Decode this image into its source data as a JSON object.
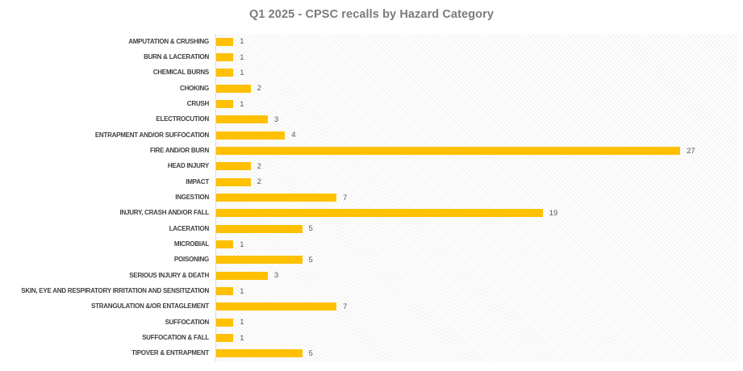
{
  "chart_data": {
    "type": "bar",
    "orientation": "horizontal",
    "title": "Q1 2025 - CPSC recalls by Hazard Category",
    "categories": [
      "AMPUTATION & CRUSHING",
      "BURN & LACERATION",
      "CHEMICAL BURNS",
      "CHOKING",
      "CRUSH",
      "ELECTROCUTION",
      "ENTRAPMENT AND/OR SUFFOCATION",
      "FIRE AND/OR BURN",
      "HEAD INJURY",
      "IMPACT",
      "INGESTION",
      "INJURY, CRASH AND/OR FALL",
      "LACERATION",
      "MICROBIAL",
      "POISONING",
      "SERIOUS INJURY & DEATH",
      "SKIN, EYE AND RESPIRATORY IRRITATION AND SENSITIZATION",
      "STRANGULATION &/OR ENTAGLEMENT",
      "SUFFOCATION",
      "SUFFOCATION & FALL",
      "TIPOVER & ENTRAPMENT"
    ],
    "values": [
      1,
      1,
      1,
      2,
      1,
      3,
      4,
      27,
      2,
      2,
      7,
      19,
      5,
      1,
      5,
      3,
      1,
      7,
      1,
      1,
      5
    ],
    "xlabel": "",
    "ylabel": "",
    "xlim": [
      0,
      30
    ],
    "grid": false,
    "legend": "none",
    "data_labels": true,
    "colors": {
      "bar": "#FFC000",
      "category_label": "#404040",
      "value_label": "#595959",
      "title": "#7b7b7b",
      "axis_line": "#d9d9d9"
    },
    "plot_background": "light-diagonal-hatch"
  }
}
